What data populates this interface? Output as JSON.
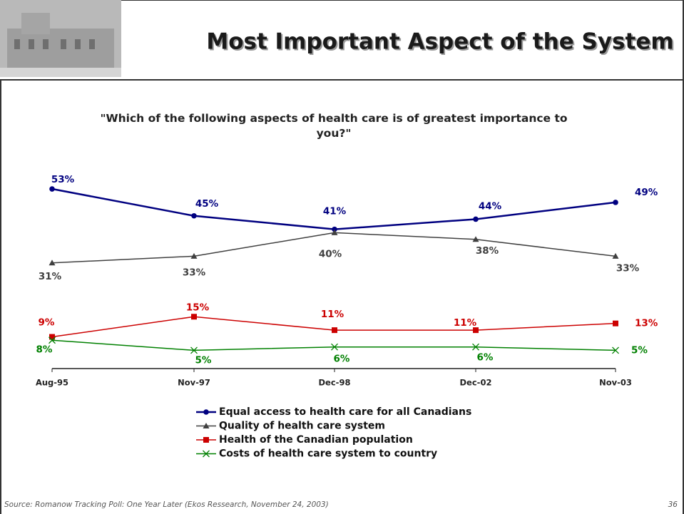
{
  "header": {
    "title": "Most Important Aspect of the System"
  },
  "chart_data": {
    "type": "line",
    "title": "\"Which of the following aspects of health care is of greatest importance to you?\"",
    "categories": [
      "Aug-95",
      "Nov-97",
      "Dec-98",
      "Dec-02",
      "Nov-03"
    ],
    "ylim": [
      0,
      60
    ],
    "series": [
      {
        "name": "Equal access to health care for all Canadians",
        "color": "#000080",
        "marker": "circle",
        "values": [
          53,
          45,
          41,
          44,
          49
        ],
        "value_labels": [
          "53%",
          "45%",
          "41%",
          "44%",
          "49%"
        ]
      },
      {
        "name": "Quality of health care system",
        "color": "#404040",
        "marker": "triangle",
        "values": [
          31,
          33,
          40,
          38,
          33
        ],
        "value_labels": [
          "31%",
          "33%",
          "40%",
          "38%",
          "33%"
        ]
      },
      {
        "name": "Health of the Canadian population",
        "color": "#cc0000",
        "marker": "square",
        "values": [
          9,
          15,
          11,
          11,
          13
        ],
        "value_labels": [
          "9%",
          "15%",
          "11%",
          "11%",
          "13%"
        ]
      },
      {
        "name": "Costs of health care system to country",
        "color": "#008000",
        "marker": "x",
        "values": [
          8,
          5,
          6,
          6,
          5
        ],
        "value_labels": [
          "8%",
          "5%",
          "6%",
          "6%",
          "5%"
        ]
      }
    ]
  },
  "footer": {
    "source": "Source: Romanow Tracking Poll:  One Year Later (Ekos Ressearch, November 24, 2003)",
    "page_number": "36"
  }
}
